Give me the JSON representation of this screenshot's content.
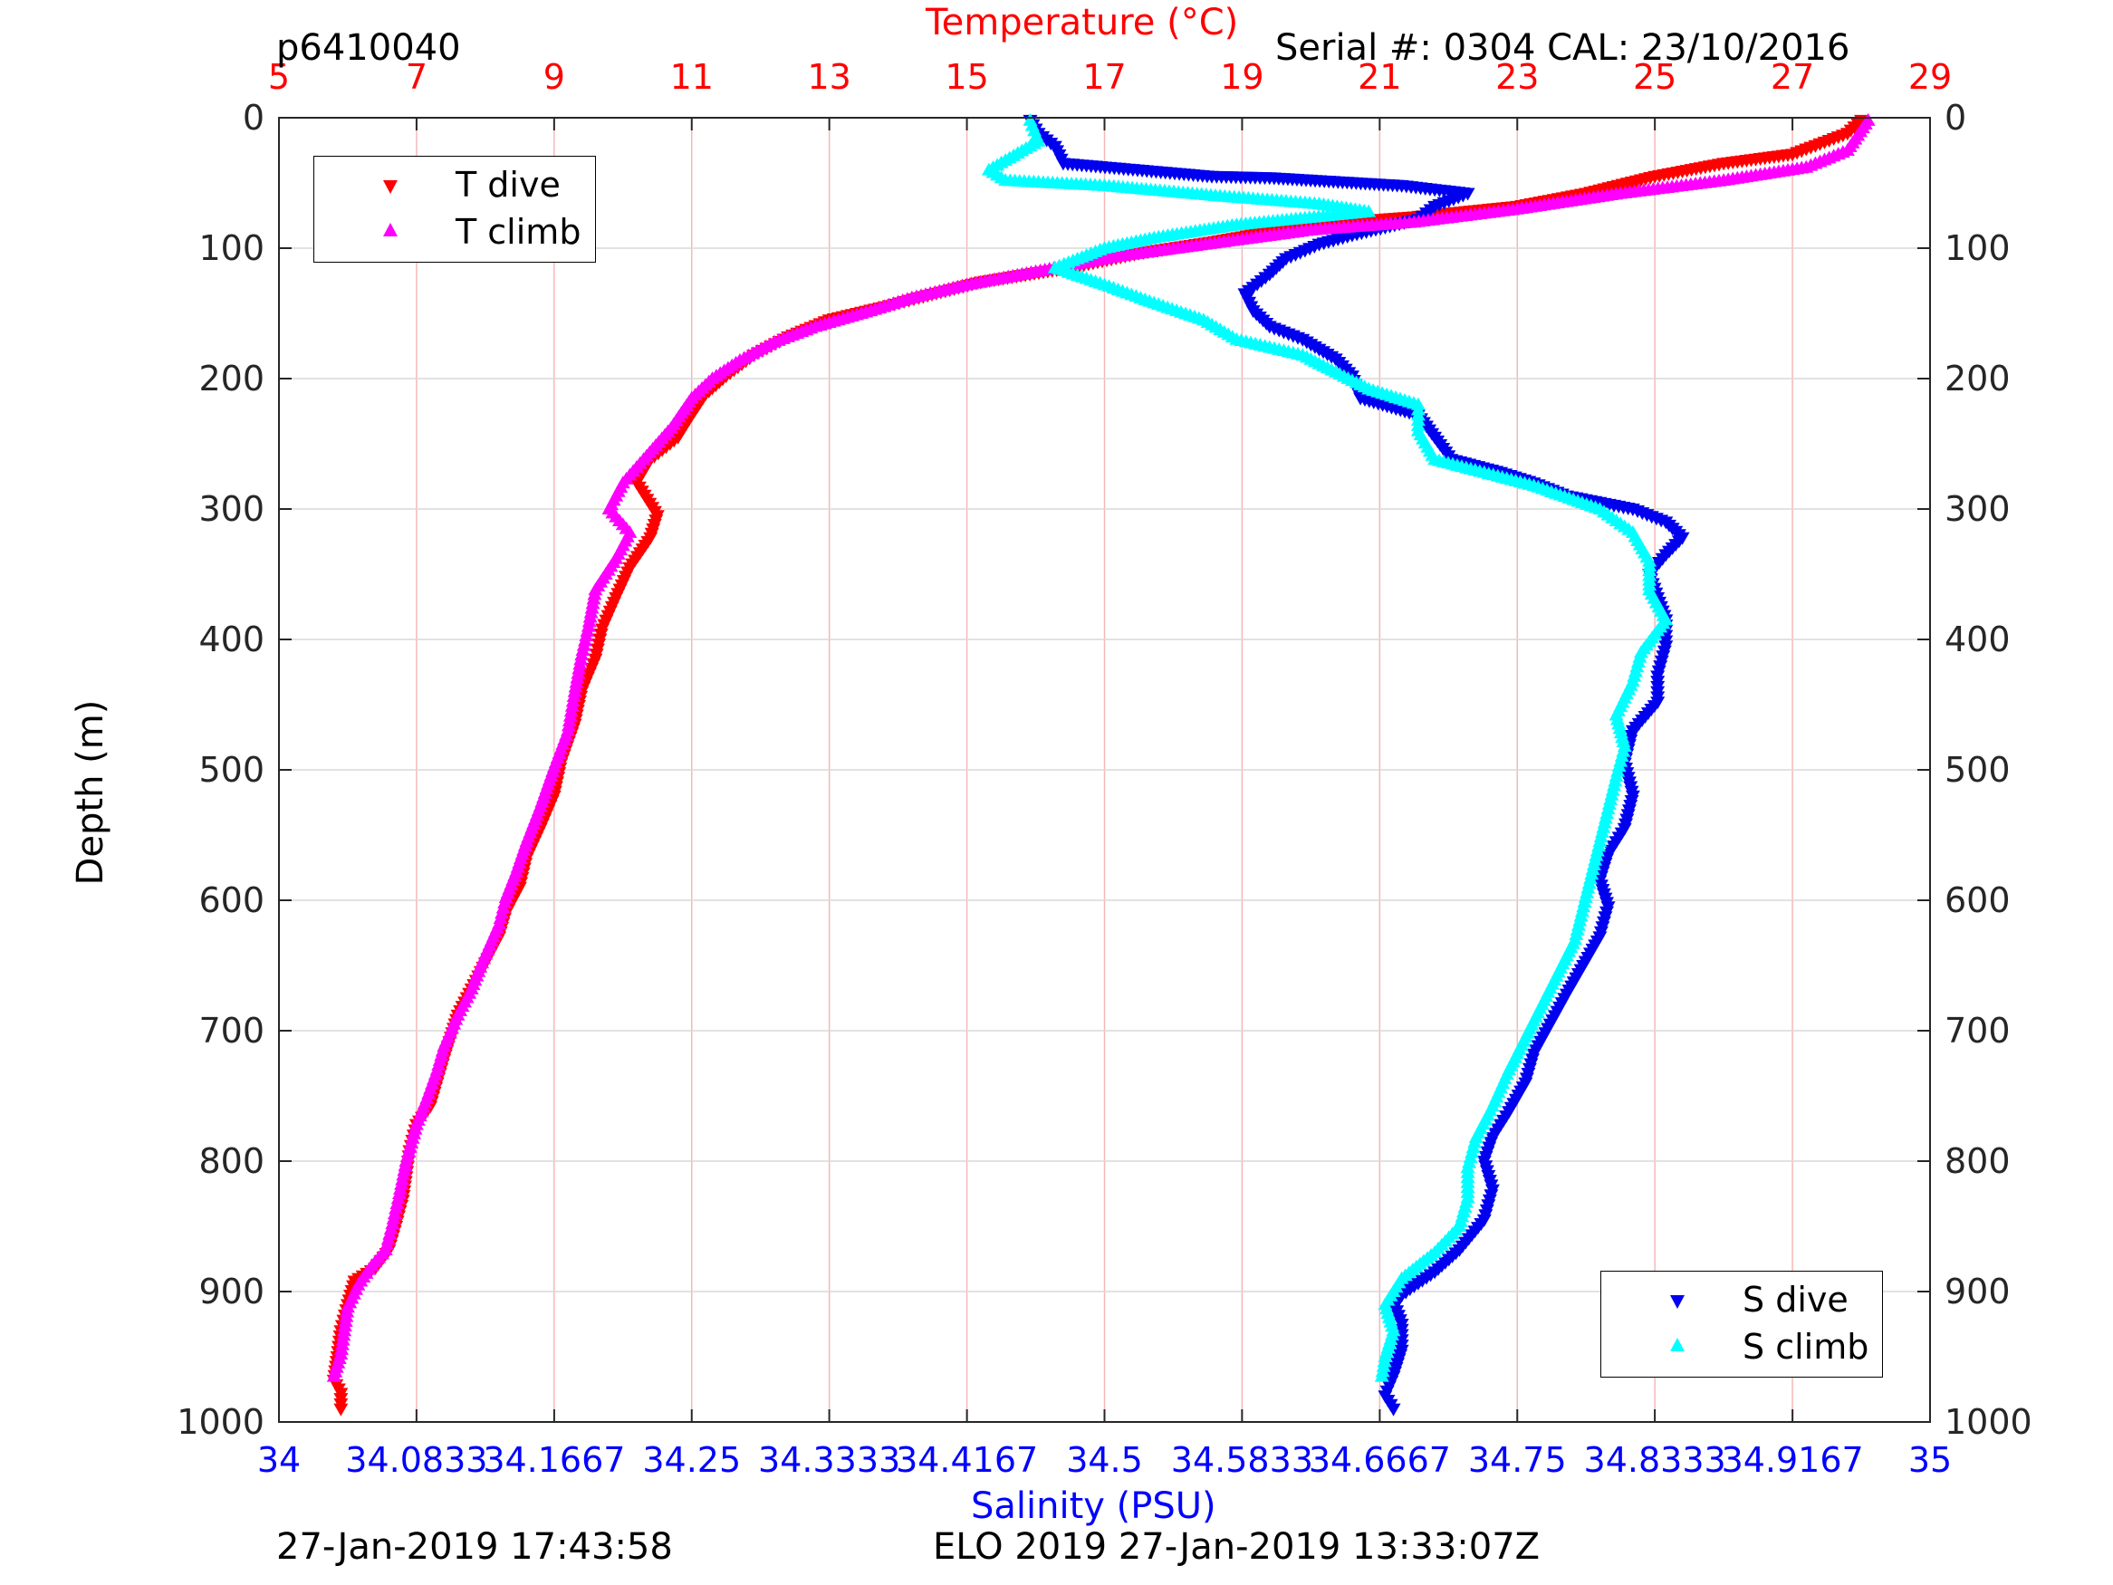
{
  "header": {
    "id": "p6410040",
    "serial": "Serial #: 0304  CAL: 23/10/2016"
  },
  "footer": {
    "left": "27-Jan-2019 17:43:58",
    "center": "ELO 2019 27-Jan-2019 13:33:07Z"
  },
  "colors": {
    "t_dive": "#ff0000",
    "t_climb": "#ff00ff",
    "s_dive": "#0000ee",
    "s_climb": "#00ffff",
    "temp_axis": "#ff0000",
    "sal_axis": "#0000ff",
    "grid_temp": "#f4b8b8",
    "grid_depth": "#d9d9d9"
  },
  "chart_data": {
    "type": "scatter",
    "title": "",
    "ylabel": "Depth (m)",
    "ylim": [
      0,
      1000
    ],
    "y_reversed": true,
    "yticks": [
      0,
      100,
      200,
      300,
      400,
      500,
      600,
      700,
      800,
      900,
      1000
    ],
    "ytick_labels": [
      "0",
      "100",
      "200",
      "300",
      "400",
      "500",
      "600",
      "700",
      "800",
      "900",
      "1000"
    ],
    "top_axis": {
      "label": "Temperature (°C)",
      "lim": [
        5,
        29
      ],
      "ticks": [
        5,
        7,
        9,
        11,
        13,
        15,
        17,
        19,
        21,
        23,
        25,
        27,
        29
      ],
      "tick_labels": [
        "5",
        "7",
        "9",
        "11",
        "13",
        "15",
        "17",
        "19",
        "21",
        "23",
        "25",
        "27",
        "29"
      ]
    },
    "bottom_axis": {
      "label": "Salinity (PSU)",
      "lim": [
        34,
        35
      ],
      "ticks": [
        34,
        34.0833,
        34.1667,
        34.25,
        34.3333,
        34.4167,
        34.5,
        34.5833,
        34.6667,
        34.75,
        34.8333,
        34.9167,
        35
      ],
      "tick_labels": [
        "34",
        "34.0833",
        "34.1667",
        "34.25",
        "34.3333",
        "34.4167",
        "34.5",
        "34.5833",
        "34.6667",
        "34.75",
        "34.8333",
        "34.9167",
        "35"
      ]
    },
    "grid": true,
    "legends": [
      {
        "placement": "top-left",
        "entries": [
          "T dive",
          "T climb"
        ]
      },
      {
        "placement": "bottom-right",
        "entries": [
          "S dive",
          "S climb"
        ]
      }
    ],
    "series": [
      {
        "name": "T dive",
        "axis": "temperature",
        "marker": "triangle-down",
        "points": [
          [
            28.0,
            2
          ],
          [
            27.8,
            12
          ],
          [
            27.0,
            28
          ],
          [
            26.0,
            35
          ],
          [
            25.0,
            45
          ],
          [
            24.0,
            58
          ],
          [
            23.0,
            68
          ],
          [
            21.5,
            76
          ],
          [
            20.0,
            82
          ],
          [
            18.6,
            95
          ],
          [
            17.5,
            104
          ],
          [
            16.5,
            115
          ],
          [
            15.2,
            126
          ],
          [
            14.3,
            138
          ],
          [
            13.8,
            145
          ],
          [
            13.0,
            155
          ],
          [
            12.4,
            168
          ],
          [
            11.9,
            182
          ],
          [
            11.5,
            198
          ],
          [
            11.2,
            212
          ],
          [
            11.0,
            228
          ],
          [
            10.8,
            245
          ],
          [
            10.4,
            262
          ],
          [
            10.2,
            280
          ],
          [
            10.5,
            305
          ],
          [
            10.4,
            322
          ],
          [
            10.1,
            345
          ],
          [
            9.9,
            368
          ],
          [
            9.7,
            392
          ],
          [
            9.6,
            415
          ],
          [
            9.4,
            440
          ],
          [
            9.3,
            465
          ],
          [
            9.1,
            495
          ],
          [
            9.0,
            520
          ],
          [
            8.8,
            545
          ],
          [
            8.6,
            568
          ],
          [
            8.5,
            590
          ],
          [
            8.3,
            610
          ],
          [
            8.2,
            628
          ],
          [
            8.0,
            648
          ],
          [
            7.8,
            668
          ],
          [
            7.6,
            688
          ],
          [
            7.5,
            705
          ],
          [
            7.4,
            722
          ],
          [
            7.3,
            740
          ],
          [
            7.2,
            758
          ],
          [
            7.0,
            772
          ],
          [
            6.9,
            792
          ],
          [
            6.85,
            812
          ],
          [
            6.8,
            830
          ],
          [
            6.7,
            850
          ],
          [
            6.6,
            868
          ],
          [
            6.4,
            882
          ],
          [
            6.1,
            892
          ],
          [
            6.0,
            910
          ],
          [
            5.9,
            930
          ],
          [
            5.85,
            950
          ],
          [
            5.8,
            968
          ],
          [
            5.9,
            978
          ],
          [
            5.9,
            990
          ]
        ]
      },
      {
        "name": "T climb",
        "axis": "temperature",
        "marker": "triangle-up",
        "points": [
          [
            28.1,
            2
          ],
          [
            27.8,
            25
          ],
          [
            27.2,
            38
          ],
          [
            26.0,
            48
          ],
          [
            24.5,
            58
          ],
          [
            23.0,
            70
          ],
          [
            21.5,
            80
          ],
          [
            20.0,
            86
          ],
          [
            18.6,
            96
          ],
          [
            17.2,
            106
          ],
          [
            16.0,
            118
          ],
          [
            15.0,
            128
          ],
          [
            14.2,
            138
          ],
          [
            13.6,
            148
          ],
          [
            12.8,
            160
          ],
          [
            12.2,
            172
          ],
          [
            11.7,
            186
          ],
          [
            11.3,
            200
          ],
          [
            11.0,
            215
          ],
          [
            10.7,
            238
          ],
          [
            10.3,
            262
          ],
          [
            10.0,
            280
          ],
          [
            9.8,
            300
          ],
          [
            10.1,
            318
          ],
          [
            9.9,
            338
          ],
          [
            9.6,
            362
          ],
          [
            9.5,
            390
          ],
          [
            9.4,
            412
          ],
          [
            9.3,
            440
          ],
          [
            9.2,
            470
          ],
          [
            9.0,
            498
          ],
          [
            8.8,
            528
          ],
          [
            8.6,
            555
          ],
          [
            8.45,
            578
          ],
          [
            8.3,
            598
          ],
          [
            8.2,
            618
          ],
          [
            7.95,
            648
          ],
          [
            7.8,
            668
          ],
          [
            7.6,
            688
          ],
          [
            7.4,
            712
          ],
          [
            7.3,
            730
          ],
          [
            7.15,
            752
          ],
          [
            7.0,
            772
          ],
          [
            6.85,
            800
          ],
          [
            6.75,
            825
          ],
          [
            6.65,
            848
          ],
          [
            6.55,
            868
          ],
          [
            6.35,
            880
          ],
          [
            6.15,
            895
          ],
          [
            6.0,
            912
          ],
          [
            5.95,
            930
          ],
          [
            5.9,
            948
          ],
          [
            5.8,
            965
          ]
        ]
      },
      {
        "name": "S dive",
        "axis": "salinity",
        "marker": "triangle-down",
        "points": [
          [
            34.455,
            2
          ],
          [
            34.46,
            12
          ],
          [
            34.47,
            22
          ],
          [
            34.475,
            35
          ],
          [
            34.565,
            45
          ],
          [
            34.6,
            46
          ],
          [
            34.68,
            52
          ],
          [
            34.72,
            58
          ],
          [
            34.7,
            68
          ],
          [
            34.69,
            78
          ],
          [
            34.65,
            90
          ],
          [
            34.63,
            97
          ],
          [
            34.61,
            108
          ],
          [
            34.6,
            120
          ],
          [
            34.585,
            135
          ],
          [
            34.59,
            148
          ],
          [
            34.6,
            160
          ],
          [
            34.62,
            170
          ],
          [
            34.64,
            185
          ],
          [
            34.65,
            198
          ],
          [
            34.655,
            215
          ],
          [
            34.69,
            228
          ],
          [
            34.7,
            245
          ],
          [
            34.71,
            262
          ],
          [
            34.74,
            272
          ],
          [
            34.76,
            280
          ],
          [
            34.78,
            290
          ],
          [
            34.82,
            300
          ],
          [
            34.84,
            310
          ],
          [
            34.85,
            322
          ],
          [
            34.84,
            335
          ],
          [
            34.83,
            350
          ],
          [
            34.835,
            368
          ],
          [
            34.84,
            385
          ],
          [
            34.84,
            405
          ],
          [
            34.835,
            428
          ],
          [
            34.835,
            448
          ],
          [
            34.82,
            470
          ],
          [
            34.815,
            495
          ],
          [
            34.82,
            520
          ],
          [
            34.815,
            545
          ],
          [
            34.805,
            565
          ],
          [
            34.8,
            585
          ],
          [
            34.805,
            605
          ],
          [
            34.8,
            628
          ],
          [
            34.79,
            650
          ],
          [
            34.78,
            672
          ],
          [
            34.77,
            695
          ],
          [
            34.76,
            718
          ],
          [
            34.755,
            740
          ],
          [
            34.745,
            762
          ],
          [
            34.735,
            782
          ],
          [
            34.73,
            800
          ],
          [
            34.735,
            822
          ],
          [
            34.73,
            845
          ],
          [
            34.715,
            868
          ],
          [
            34.7,
            885
          ],
          [
            34.685,
            898
          ],
          [
            34.675,
            908
          ],
          [
            34.68,
            925
          ],
          [
            34.68,
            945
          ],
          [
            34.675,
            965
          ],
          [
            34.67,
            980
          ],
          [
            34.675,
            990
          ]
        ]
      },
      {
        "name": "S climb",
        "axis": "salinity",
        "marker": "triangle-up",
        "points": [
          [
            34.455,
            2
          ],
          [
            34.46,
            18
          ],
          [
            34.43,
            40
          ],
          [
            34.44,
            48
          ],
          [
            34.5,
            52
          ],
          [
            34.57,
            60
          ],
          [
            34.63,
            66
          ],
          [
            34.66,
            72
          ],
          [
            34.58,
            82
          ],
          [
            34.53,
            92
          ],
          [
            34.5,
            100
          ],
          [
            34.47,
            115
          ],
          [
            34.5,
            128
          ],
          [
            34.53,
            142
          ],
          [
            34.56,
            155
          ],
          [
            34.58,
            170
          ],
          [
            34.62,
            182
          ],
          [
            34.64,
            195
          ],
          [
            34.66,
            208
          ],
          [
            34.69,
            220
          ],
          [
            34.69,
            240
          ],
          [
            34.7,
            262
          ],
          [
            34.76,
            282
          ],
          [
            34.8,
            300
          ],
          [
            34.82,
            318
          ],
          [
            34.83,
            340
          ],
          [
            34.83,
            362
          ],
          [
            34.84,
            385
          ],
          [
            34.825,
            410
          ],
          [
            34.82,
            432
          ],
          [
            34.81,
            458
          ],
          [
            34.815,
            482
          ],
          [
            34.81,
            505
          ],
          [
            34.805,
            530
          ],
          [
            34.8,
            555
          ],
          [
            34.795,
            580
          ],
          [
            34.79,
            605
          ],
          [
            34.785,
            630
          ],
          [
            34.775,
            655
          ],
          [
            34.765,
            680
          ],
          [
            34.755,
            705
          ],
          [
            34.745,
            730
          ],
          [
            34.735,
            758
          ],
          [
            34.725,
            782
          ],
          [
            34.72,
            805
          ],
          [
            34.72,
            828
          ],
          [
            34.715,
            850
          ],
          [
            34.7,
            870
          ],
          [
            34.68,
            890
          ],
          [
            34.67,
            910
          ],
          [
            34.675,
            930
          ],
          [
            34.67,
            950
          ],
          [
            34.668,
            965
          ]
        ]
      }
    ]
  }
}
